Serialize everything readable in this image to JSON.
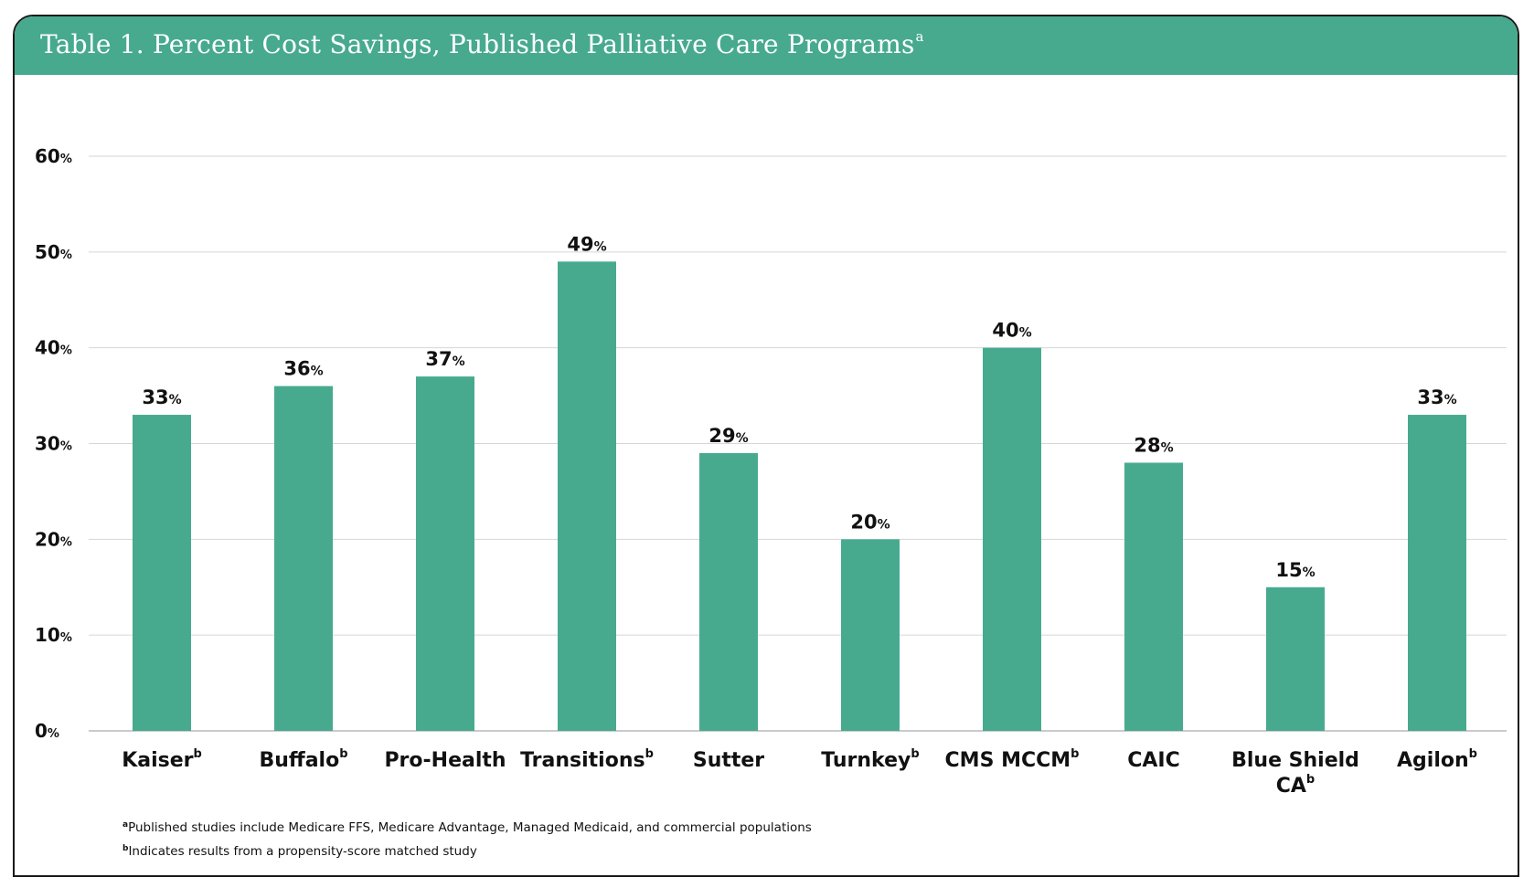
{
  "header": {
    "title": "Table 1. Percent Cost Savings, Published Palliative Care Programs",
    "title_superscript": "a"
  },
  "chart_data": {
    "type": "bar",
    "title": "Table 1. Percent Cost Savings, Published Palliative Care Programs",
    "categories": [
      "Kaiser",
      "Buffalo",
      "Pro-Health",
      "Transitions",
      "Sutter",
      "Turnkey",
      "CMS MCCM",
      "CAIC",
      "Blue Shield CA",
      "Agilon"
    ],
    "category_lines": [
      [
        "Kaiser"
      ],
      [
        "Buffalo"
      ],
      [
        "Pro-Health"
      ],
      [
        "Transitions"
      ],
      [
        "Sutter"
      ],
      [
        "Turnkey"
      ],
      [
        "CMS MCCM"
      ],
      [
        "CAIC"
      ],
      [
        "Blue Shield",
        "CA"
      ],
      [
        "Agilon"
      ]
    ],
    "category_superscripts": [
      "b",
      "b",
      "",
      "b",
      "",
      "b",
      "b",
      "",
      "b",
      "b"
    ],
    "values": [
      33,
      36,
      37,
      49,
      29,
      20,
      40,
      28,
      15,
      33
    ],
    "value_labels": [
      "33",
      "36",
      "37",
      "49",
      "29",
      "20",
      "40",
      "28",
      "15",
      "33"
    ],
    "value_suffix": "%",
    "ylim": [
      0,
      60
    ],
    "yticks": [
      "0",
      "10",
      "20",
      "30",
      "40",
      "50",
      "60"
    ],
    "ytick_values": [
      0,
      10,
      20,
      30,
      40,
      50,
      60
    ],
    "ytick_suffix": "%",
    "grid": true,
    "xlabel": "",
    "ylabel": "",
    "bar_color": "#47aa8f"
  },
  "footnotes": [
    {
      "marker": "a",
      "text": "Published studies include Medicare FFS, Medicare Advantage, Managed Medicaid, and commercial populations"
    },
    {
      "marker": "b",
      "text": "Indicates results from a propensity-score matched study"
    }
  ],
  "colors": {
    "accent": "#47aa8f",
    "grid": "#d6d6d6",
    "text": "#111111",
    "border": "#1a1a1a"
  }
}
